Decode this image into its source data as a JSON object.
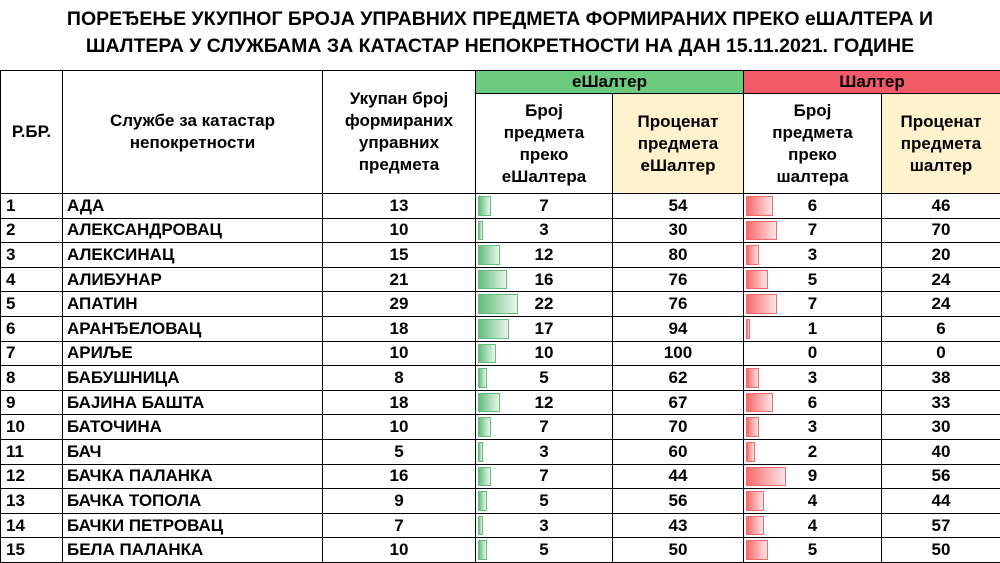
{
  "title": {
    "line1": "ПОРЕЂЕЊЕ УКУПНОГ БРОЈА УПРАВНИХ ПРЕДМЕТА ФОРМИРАНИХ ПРЕКО еШАЛТЕРА И",
    "line2": "ШАЛТЕРА У СЛУЖБАМА ЗА КАТАСТАР НЕПОКРЕТНОСТИ НА ДАН 15.11.2021. ГОДИНЕ"
  },
  "headers": {
    "rb": "Р.БР.",
    "office": "Службе за катастар непокретности",
    "total": "Укупан број формираних управних предмета",
    "eshalter_group": "еШалтер",
    "eshalter_count": "Број предмета преко еШалтера",
    "eshalter_percent": "Проценат предмета еШалтер",
    "shalter_group": "Шалтер",
    "shalter_count": "Број предмета преко шалтера",
    "shalter_percent": "Проценат предмета шалтер"
  },
  "colors": {
    "eshalter_header": "#6ccb7e",
    "shalter_header": "#f25a67",
    "percent_header": "#fff2cc",
    "green_bar": "#63be7b",
    "red_bar": "#f8696b"
  },
  "rows": [
    {
      "rb": "1",
      "office": "АДА",
      "total": "13",
      "e_count": "7",
      "e_pct": "54",
      "s_count": "6",
      "s_pct": "46"
    },
    {
      "rb": "2",
      "office": "АЛЕКСАНДРОВАЦ",
      "total": "10",
      "e_count": "3",
      "e_pct": "30",
      "s_count": "7",
      "s_pct": "70"
    },
    {
      "rb": "3",
      "office": "АЛЕКСИНАЦ",
      "total": "15",
      "e_count": "12",
      "e_pct": "80",
      "s_count": "3",
      "s_pct": "20"
    },
    {
      "rb": "4",
      "office": "АЛИБУНАР",
      "total": "21",
      "e_count": "16",
      "e_pct": "76",
      "s_count": "5",
      "s_pct": "24"
    },
    {
      "rb": "5",
      "office": "АПАТИН",
      "total": "29",
      "e_count": "22",
      "e_pct": "76",
      "s_count": "7",
      "s_pct": "24"
    },
    {
      "rb": "6",
      "office": "АРАНЂЕЛОВАЦ",
      "total": "18",
      "e_count": "17",
      "e_pct": "94",
      "s_count": "1",
      "s_pct": "6"
    },
    {
      "rb": "7",
      "office": "АРИЉЕ",
      "total": "10",
      "e_count": "10",
      "e_pct": "100",
      "s_count": "0",
      "s_pct": "0"
    },
    {
      "rb": "8",
      "office": "БАБУШНИЦА",
      "total": "8",
      "e_count": "5",
      "e_pct": "62",
      "s_count": "3",
      "s_pct": "38"
    },
    {
      "rb": "9",
      "office": "БАЈИНА БАШТА",
      "total": "18",
      "e_count": "12",
      "e_pct": "67",
      "s_count": "6",
      "s_pct": "33"
    },
    {
      "rb": "10",
      "office": "БАТОЧИНА",
      "total": "10",
      "e_count": "7",
      "e_pct": "70",
      "s_count": "3",
      "s_pct": "30"
    },
    {
      "rb": "11",
      "office": "БАЧ",
      "total": "5",
      "e_count": "3",
      "e_pct": "60",
      "s_count": "2",
      "s_pct": "40"
    },
    {
      "rb": "12",
      "office": "БАЧКА ПАЛАНКА",
      "total": "16",
      "e_count": "7",
      "e_pct": "44",
      "s_count": "9",
      "s_pct": "56"
    },
    {
      "rb": "13",
      "office": "БАЧКА ТОПОЛА",
      "total": "9",
      "e_count": "5",
      "e_pct": "56",
      "s_count": "4",
      "s_pct": "44"
    },
    {
      "rb": "14",
      "office": "БАЧКИ ПЕТРОВАЦ",
      "total": "7",
      "e_count": "3",
      "e_pct": "43",
      "s_count": "4",
      "s_pct": "57"
    },
    {
      "rb": "15",
      "office": "БЕЛА ПАЛАНКА",
      "total": "10",
      "e_count": "5",
      "e_pct": "50",
      "s_count": "5",
      "s_pct": "50"
    }
  ]
}
